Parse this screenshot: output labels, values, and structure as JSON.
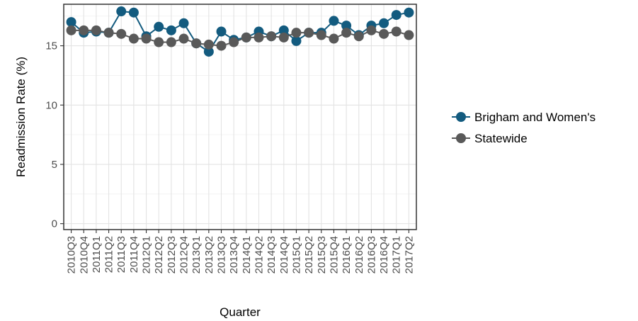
{
  "chart_data": {
    "type": "line",
    "title": "",
    "xlabel": "Quarter",
    "ylabel": "Readmission Rate (%)",
    "ylim": [
      -0.5,
      18.5
    ],
    "yticks": [
      0,
      5,
      10,
      15
    ],
    "grid": true,
    "legend_position": "right",
    "categories": [
      "2010Q3",
      "2010Q4",
      "2011Q1",
      "2011Q2",
      "2011Q3",
      "2011Q4",
      "2012Q1",
      "2012Q2",
      "2012Q3",
      "2012Q4",
      "2013Q1",
      "2013Q2",
      "2013Q3",
      "2013Q4",
      "2014Q1",
      "2014Q2",
      "2014Q3",
      "2014Q4",
      "2015Q1",
      "2015Q2",
      "2015Q3",
      "2015Q4",
      "2016Q1",
      "2016Q2",
      "2016Q3",
      "2016Q4",
      "2017Q1",
      "2017Q2"
    ],
    "series": [
      {
        "name": "Brigham and Women's",
        "color": "#135b7f",
        "values": [
          17.0,
          16.1,
          16.2,
          16.1,
          17.9,
          17.8,
          15.8,
          16.6,
          16.3,
          16.9,
          15.2,
          14.5,
          16.2,
          15.5,
          15.7,
          16.2,
          15.8,
          16.3,
          15.4,
          16.1,
          16.1,
          17.1,
          16.7,
          15.9,
          16.7,
          16.9,
          17.6,
          17.8
        ]
      },
      {
        "name": "Statewide",
        "color": "#595959",
        "values": [
          16.3,
          16.3,
          16.3,
          16.1,
          16.0,
          15.6,
          15.6,
          15.3,
          15.3,
          15.6,
          15.2,
          15.1,
          15.0,
          15.3,
          15.7,
          15.7,
          15.8,
          15.7,
          16.1,
          16.1,
          15.9,
          15.6,
          16.1,
          15.8,
          16.3,
          16.0,
          16.2,
          15.9
        ]
      }
    ]
  }
}
